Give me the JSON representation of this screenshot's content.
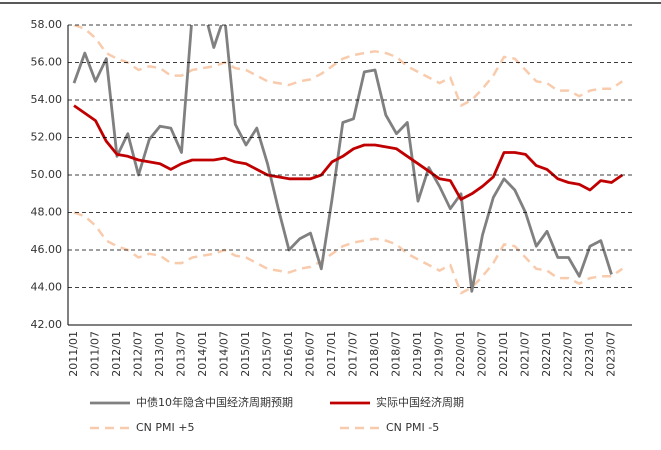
{
  "chart_data": {
    "type": "line",
    "categories": [
      "2011/01",
      null,
      "2011/07",
      null,
      "2012/01",
      null,
      "2012/07",
      null,
      "2013/01",
      null,
      "2013/07",
      null,
      "2014/01",
      null,
      "2014/07",
      null,
      "2015/01",
      null,
      "2015/07",
      null,
      "2016/01",
      null,
      "2016/07",
      null,
      "2017/01",
      null,
      "2017/07",
      null,
      "2018/01",
      null,
      "2018/07",
      null,
      "2019/01",
      null,
      "2019/07",
      null,
      "2020/01",
      null,
      "2020/07",
      null,
      "2021/01",
      null,
      "2021/07",
      null,
      "2022/01",
      null,
      "2022/07",
      null,
      "2023/01",
      null,
      "2023/07",
      null
    ],
    "series": [
      {
        "name": "中债10年隐含中国经济周期预期",
        "color": "#808080",
        "dash": false,
        "values": [
          54.9,
          56.5,
          55.0,
          56.2,
          51.0,
          52.2,
          50.0,
          51.9,
          52.6,
          52.5,
          51.2,
          58.6,
          59.0,
          56.8,
          58.5,
          52.7,
          51.6,
          52.5,
          50.6,
          48.2,
          46.0,
          46.6,
          46.9,
          45.0,
          48.7,
          52.8,
          53.0,
          55.5,
          55.6,
          53.2,
          52.2,
          52.8,
          48.6,
          50.4,
          49.4,
          48.2,
          49.0,
          43.8,
          46.8,
          48.8,
          49.8,
          49.2,
          48.0,
          46.2,
          47.0,
          45.6,
          45.6,
          44.6,
          46.2,
          46.5,
          44.7,
          null
        ]
      },
      {
        "name": "实际中国经济周期",
        "color": "#c00000",
        "dash": false,
        "values": [
          53.7,
          53.3,
          52.9,
          51.8,
          51.1,
          51.0,
          50.8,
          50.7,
          50.6,
          50.3,
          50.6,
          50.8,
          50.8,
          50.8,
          50.9,
          50.7,
          50.6,
          50.3,
          50.0,
          49.9,
          49.8,
          49.8,
          49.8,
          50.0,
          50.7,
          51.0,
          51.4,
          51.6,
          51.6,
          51.5,
          51.4,
          51.0,
          50.6,
          50.2,
          49.8,
          49.7,
          48.7,
          49.0,
          49.4,
          49.9,
          51.2,
          51.2,
          51.1,
          50.5,
          50.3,
          49.8,
          49.6,
          49.5,
          49.2,
          49.7,
          49.6,
          50.0
        ]
      },
      {
        "name": "CN PMI +5",
        "color": "#f8cbad",
        "dash": true,
        "values": [
          58.0,
          57.8,
          57.3,
          56.5,
          56.2,
          56.0,
          55.6,
          55.8,
          55.7,
          55.3,
          55.3,
          55.6,
          55.7,
          55.8,
          56.0,
          55.7,
          55.6,
          55.3,
          55.0,
          54.9,
          54.8,
          55.0,
          55.1,
          55.4,
          55.8,
          56.2,
          56.4,
          56.5,
          56.6,
          56.5,
          56.3,
          55.8,
          55.5,
          55.2,
          54.9,
          55.2,
          53.7,
          54.0,
          54.6,
          55.3,
          56.3,
          56.2,
          55.6,
          55.0,
          54.9,
          54.5,
          54.5,
          54.2,
          54.5,
          54.6,
          54.6,
          55.0
        ]
      },
      {
        "name": "CN PMI -5",
        "color": "#f8cbad",
        "dash": true,
        "values": [
          48.0,
          47.8,
          47.3,
          46.5,
          46.2,
          46.0,
          45.6,
          45.8,
          45.7,
          45.3,
          45.3,
          45.6,
          45.7,
          45.8,
          46.0,
          45.7,
          45.6,
          45.3,
          45.0,
          44.9,
          44.8,
          45.0,
          45.1,
          45.4,
          45.8,
          46.2,
          46.4,
          46.5,
          46.6,
          46.5,
          46.3,
          45.8,
          45.5,
          45.2,
          44.9,
          45.2,
          43.7,
          44.0,
          44.6,
          45.3,
          46.3,
          46.2,
          45.6,
          45.0,
          44.9,
          44.5,
          44.5,
          44.2,
          44.5,
          44.6,
          44.6,
          45.0
        ]
      }
    ],
    "ylim": [
      42,
      58
    ],
    "yticks": [
      {
        "value": 42,
        "label": "42.00"
      },
      {
        "value": 44,
        "label": "44.00"
      },
      {
        "value": 46,
        "label": "46.00"
      },
      {
        "value": 48,
        "label": "48.00"
      },
      {
        "value": 50,
        "label": "50.00"
      },
      {
        "value": 52,
        "label": "52.00"
      },
      {
        "value": 54,
        "label": "54.00"
      },
      {
        "value": 56,
        "label": "56.00"
      },
      {
        "value": 58,
        "label": "58.00"
      }
    ],
    "grid": true
  }
}
